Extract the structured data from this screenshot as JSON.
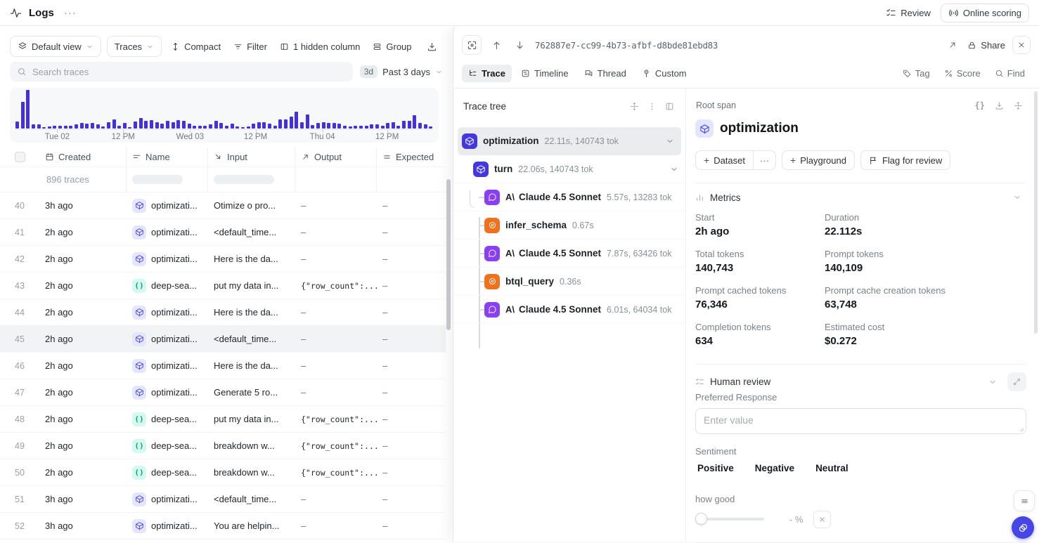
{
  "app": {
    "title": "Logs"
  },
  "topbar": {
    "review_label": "Review",
    "online_scoring_label": "Online scoring"
  },
  "toolbar": {
    "view_selector": "Default view",
    "mode_selector": "Traces",
    "compact_label": "Compact",
    "filter_label": "Filter",
    "hidden_columns_label": "1 hidden column",
    "group_label": "Group"
  },
  "search": {
    "placeholder": "Search traces",
    "range_badge": "3d",
    "range_label": "Past 3 days"
  },
  "colors": {
    "histogram_bar": "#4330e0",
    "span_indigo": "#4338e0",
    "llm_purple": "#8a3ff2",
    "tool_orange": "#f0701c",
    "code_teal": "#0ca678",
    "fab_blue": "#4645e8"
  },
  "histogram": {
    "values": [
      10,
      38,
      55,
      6,
      6,
      2,
      3,
      4,
      4,
      4,
      4,
      6,
      8,
      7,
      8,
      6,
      3,
      9,
      13,
      4,
      8,
      2,
      10,
      15,
      11,
      12,
      9,
      7,
      11,
      9,
      12,
      11,
      7,
      4,
      4,
      4,
      6,
      11,
      8,
      4,
      7,
      3,
      2,
      3,
      7,
      9,
      9,
      7,
      4,
      13,
      13,
      17,
      24,
      9,
      20,
      5,
      8,
      9,
      8,
      8,
      7,
      4,
      3,
      4,
      4,
      4,
      6,
      6,
      4,
      8,
      9,
      4,
      11,
      11,
      19,
      8,
      6,
      3
    ],
    "ticks": [
      {
        "label": "Tue 02",
        "pos": 10
      },
      {
        "label": "12 PM",
        "pos": 25.8
      },
      {
        "label": "Wed 03",
        "pos": 41.8
      },
      {
        "label": "12 PM",
        "pos": 57.5
      },
      {
        "label": "Thu 04",
        "pos": 73.5
      },
      {
        "label": "12 PM",
        "pos": 89
      }
    ]
  },
  "table": {
    "columns": {
      "created": "Created",
      "name": "Name",
      "input": "Input",
      "output": "Output",
      "expected": "Expected"
    },
    "summary": "896 traces",
    "rows": [
      {
        "num": "40",
        "created": "3h ago",
        "icon": "cube-icon",
        "name": "optimizati...",
        "input": "Otimize o pro...",
        "output": "–",
        "expected": "–"
      },
      {
        "num": "41",
        "created": "2h ago",
        "icon": "cube-icon",
        "name": "optimizati...",
        "input": "<default_time...",
        "output": "–",
        "expected": "–"
      },
      {
        "num": "42",
        "created": "2h ago",
        "icon": "cube-icon",
        "name": "optimizati...",
        "input": "Here is the da...",
        "output": "–",
        "expected": "–"
      },
      {
        "num": "43",
        "created": "2h ago",
        "icon": "code-icon",
        "name": "deep-sea...",
        "input": "put my data in...",
        "output": "{\"row_count\":...",
        "expected": "–"
      },
      {
        "num": "44",
        "created": "2h ago",
        "icon": "cube-icon",
        "name": "optimizati...",
        "input": "Here is the da...",
        "output": "–",
        "expected": "–"
      },
      {
        "num": "45",
        "created": "2h ago",
        "icon": "cube-icon",
        "name": "optimizati...",
        "input": "<default_time...",
        "output": "–",
        "expected": "–"
      },
      {
        "num": "46",
        "created": "2h ago",
        "icon": "cube-icon",
        "name": "optimizati...",
        "input": "Here is the da...",
        "output": "–",
        "expected": "–"
      },
      {
        "num": "47",
        "created": "2h ago",
        "icon": "cube-icon",
        "name": "optimizati...",
        "input": "Generate 5 ro...",
        "output": "–",
        "expected": "–"
      },
      {
        "num": "48",
        "created": "2h ago",
        "icon": "code-icon",
        "name": "deep-sea...",
        "input": "put my data in...",
        "output": "{\"row_count\":...",
        "expected": "–"
      },
      {
        "num": "49",
        "created": "2h ago",
        "icon": "code-icon",
        "name": "deep-sea...",
        "input": "breakdown w...",
        "output": "{\"row_count\":...",
        "expected": "–"
      },
      {
        "num": "50",
        "created": "2h ago",
        "icon": "code-icon",
        "name": "deep-sea...",
        "input": "breakdown w...",
        "output": "{\"row_count\":...",
        "expected": "–"
      },
      {
        "num": "51",
        "created": "3h ago",
        "icon": "cube-icon",
        "name": "optimizati...",
        "input": "<default_time...",
        "output": "–",
        "expected": "–"
      },
      {
        "num": "52",
        "created": "3h ago",
        "icon": "cube-icon",
        "name": "optimizati...",
        "input": "You are helpin...",
        "output": "–",
        "expected": "–"
      }
    ]
  },
  "trace_panel": {
    "trace_id": "762887e7-cc99-4b73-afbf-d8bde81ebd83",
    "share_label": "Share",
    "tabs": {
      "trace": "Trace",
      "timeline": "Timeline",
      "thread": "Thread",
      "custom": "Custom"
    },
    "actions": {
      "tag": "Tag",
      "score": "Score",
      "find": "Find"
    },
    "tree": {
      "title": "Trace tree",
      "nodes": [
        {
          "label": "optimization",
          "meta": "22.11s, 140743 tok"
        },
        {
          "label": "turn",
          "meta": "22.06s, 140743 tok"
        },
        {
          "label": "Claude 4.5 Sonnet",
          "meta": "5.57s, 13283 tok"
        },
        {
          "label": "infer_schema",
          "meta": "0.67s"
        },
        {
          "label": "Claude 4.5 Sonnet",
          "meta": "7.87s, 63426 tok"
        },
        {
          "label": "btql_query",
          "meta": "0.36s"
        },
        {
          "label": "Claude 4.5 Sonnet",
          "meta": "6.01s, 64034 tok"
        }
      ]
    },
    "detail": {
      "kicker": "Root span",
      "title": "optimization",
      "buttons": {
        "dataset": "Dataset",
        "playground": "Playground",
        "flag": "Flag for review"
      },
      "metrics": {
        "title": "Metrics",
        "items": [
          {
            "label": "Start",
            "value": "2h ago"
          },
          {
            "label": "Duration",
            "value": "22.112s"
          },
          {
            "label": "Total tokens",
            "value": "140,743"
          },
          {
            "label": "Prompt tokens",
            "value": "140,109"
          },
          {
            "label": "Prompt cached tokens",
            "value": "76,346"
          },
          {
            "label": "Prompt cache creation tokens",
            "value": "63,748"
          },
          {
            "label": "Completion tokens",
            "value": "634"
          },
          {
            "label": "Estimated cost",
            "value": "$0.272"
          }
        ]
      },
      "human_review": {
        "title": "Human review",
        "preferred_response_label": "Preferred Response",
        "preferred_response_placeholder": "Enter value",
        "sentiment_label": "Sentiment",
        "sentiment_options": [
          "Positive",
          "Negative",
          "Neutral"
        ],
        "slider_label": "how good",
        "slider_value": "- %"
      }
    }
  }
}
